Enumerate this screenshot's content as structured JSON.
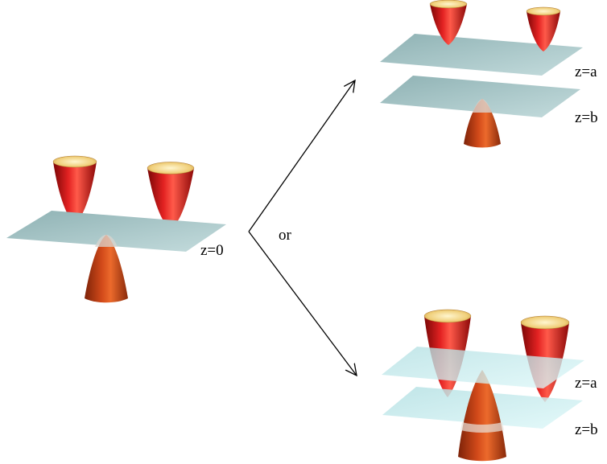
{
  "left_panel": {
    "plane_label": "z=0"
  },
  "connector": {
    "label": "or"
  },
  "top_right_panel": {
    "upper_plane_label": "z=a",
    "lower_plane_label": "z=b"
  },
  "bottom_right_panel": {
    "upper_plane_label": "z=a",
    "lower_plane_label": "z=b"
  },
  "colors": {
    "upper_cone": "#d81818",
    "lower_cone": "#c8401a",
    "cone_rim": "#f2d68a",
    "plane": "#a9c7c9",
    "plane_light": "#c9eef0",
    "arrow": "#000000"
  }
}
